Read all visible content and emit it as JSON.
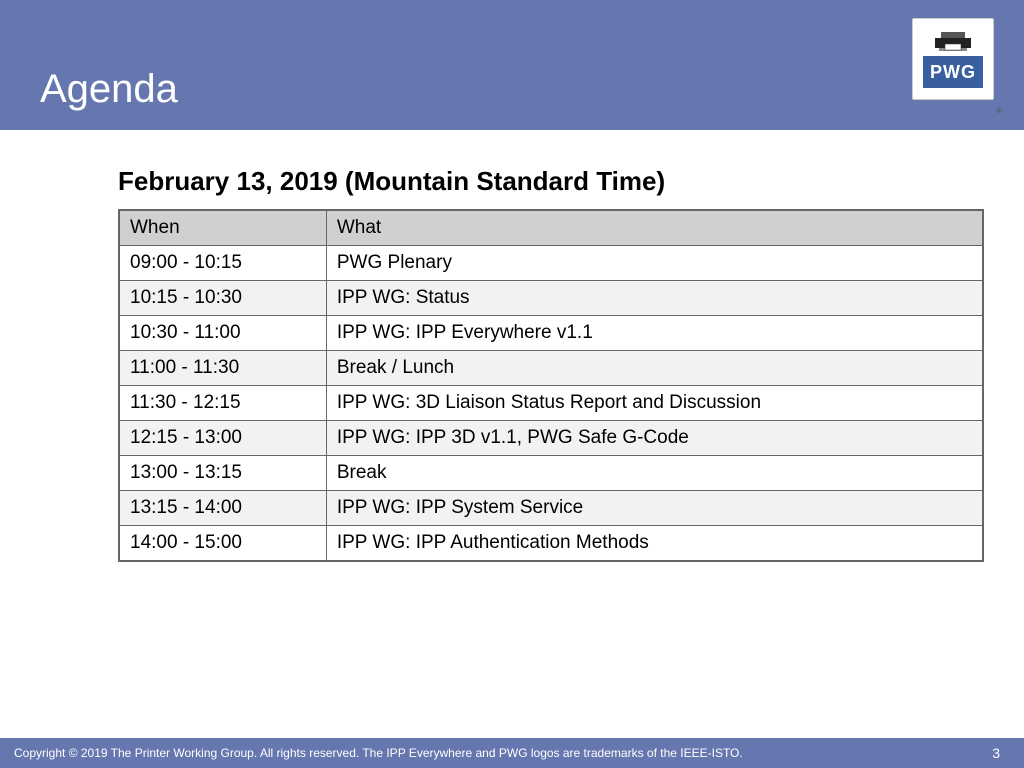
{
  "header": {
    "title": "Agenda",
    "band_color": "#6677b0",
    "title_color": "#ffffff",
    "title_fontsize": 40
  },
  "logo": {
    "text": "PWG",
    "text_bg": "#3a5fa0",
    "text_color": "#ffffff",
    "registered_mark": "®"
  },
  "subtitle": "February 13, 2019 (Mountain Standard Time)",
  "table": {
    "columns": [
      "When",
      "What"
    ],
    "header_bg": "#d0d0d0",
    "border_color": "#666666",
    "row_even_bg": "#f2f2f2",
    "row_odd_bg": "#ffffff",
    "when_col_width_pct": 24,
    "cell_fontsize": 19,
    "rows": [
      {
        "when": "09:00 - 10:15",
        "what": "PWG Plenary"
      },
      {
        "when": "10:15 - 10:30",
        "what": "IPP WG: Status"
      },
      {
        "when": "10:30 - 11:00",
        "what": "IPP WG: IPP Everywhere v1.1"
      },
      {
        "when": "11:00 - 11:30",
        "what": "Break / Lunch"
      },
      {
        "when": "11:30 - 12:15",
        "what": "IPP WG: 3D Liaison Status Report and Discussion"
      },
      {
        "when": "12:15 - 13:00",
        "what": "IPP WG: IPP 3D v1.1, PWG Safe G-Code"
      },
      {
        "when": "13:00 - 13:15",
        "what": "Break"
      },
      {
        "when": "13:15 - 14:00",
        "what": "IPP WG: IPP System Service"
      },
      {
        "when": "14:00 - 15:00",
        "what": "IPP WG: IPP Authentication Methods"
      }
    ]
  },
  "footer": {
    "copyright": "Copyright © 2019 The Printer Working Group. All rights reserved. The IPP Everywhere and PWG logos are trademarks of the IEEE-ISTO.",
    "page_number": "3",
    "band_color": "#6677b0",
    "text_color": "#ffffff"
  }
}
